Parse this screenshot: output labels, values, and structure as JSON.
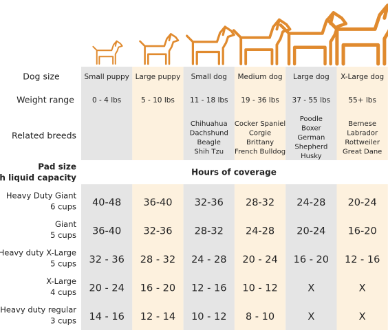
{
  "row_labels": {
    "size": "Dog size",
    "weight": "Weight range",
    "breeds": "Related breeds"
  },
  "columns": [
    {
      "size": "Small puppy",
      "weight": "0 - 4 lbs",
      "breeds": []
    },
    {
      "size": "Large puppy",
      "weight": "5 - 10 lbs",
      "breeds": []
    },
    {
      "size": "Small dog",
      "weight": "11 - 18 lbs",
      "breeds": [
        "Chihuahua",
        "Dachshund",
        "Beagle",
        "Shih Tzu"
      ]
    },
    {
      "size": "Medium dog",
      "weight": "19 - 36 lbs",
      "breeds": [
        "Cocker Spaniel",
        "Corgie",
        "Brittany",
        "French Bulldog"
      ]
    },
    {
      "size": "Large dog",
      "weight": "37 - 55 lbs",
      "breeds": [
        "Poodle",
        "Boxer",
        "German",
        "Shepherd",
        "Husky"
      ]
    },
    {
      "size": "X-Large dog",
      "weight": "55+ lbs",
      "breeds": [
        "Bernese",
        "Labrador",
        "Rottweiler",
        "Great Dane"
      ]
    }
  ],
  "pad_header": [
    "Pad size",
    "with liquid capacity"
  ],
  "hours_header": "Hours of coverage",
  "pads": [
    {
      "name": "Heavy Duty Giant",
      "capacity": "6 cups",
      "hours": [
        "40-48",
        "36-40",
        "32-36",
        "28-32",
        "24-28",
        "20-24"
      ]
    },
    {
      "name": "Giant",
      "capacity": "5 cups",
      "hours": [
        "36-40",
        "32-36",
        "28-32",
        "24-28",
        "20-24",
        "16-20"
      ]
    },
    {
      "name": "Heavy duty X-Large",
      "capacity": "5 cups",
      "hours": [
        "32 - 36",
        "28 - 32",
        "24 - 28",
        "20 - 24",
        "16 - 20",
        "12 - 16"
      ]
    },
    {
      "name": "X-Large",
      "capacity": "4 cups",
      "hours": [
        "20 - 24",
        "16 - 20",
        "12 - 16",
        "10 - 12",
        "X",
        "X"
      ]
    },
    {
      "name": "Heavy duty regular",
      "capacity": "3 cups",
      "hours": [
        "14 - 16",
        "12 - 14",
        "10 - 12",
        "8 - 10",
        "X",
        "X"
      ]
    }
  ]
}
